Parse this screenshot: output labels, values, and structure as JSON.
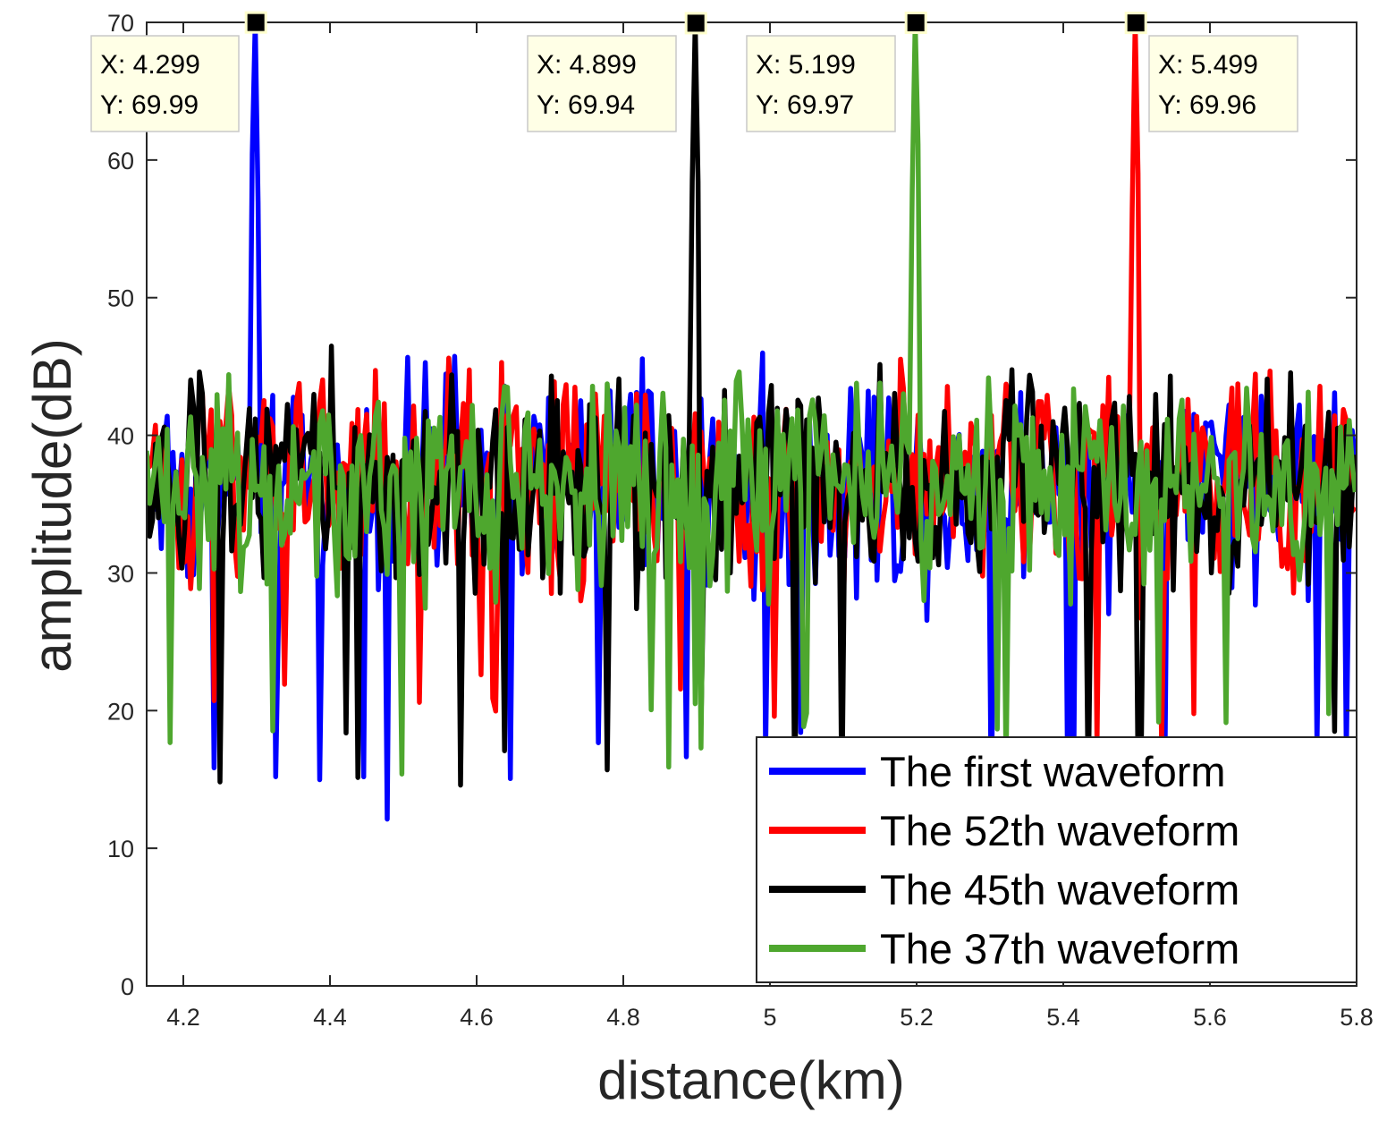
{
  "chart_data": {
    "type": "line",
    "title": "",
    "xlabel": "distance(km)",
    "ylabel": "amplitude(dB)",
    "xlim": [
      4.15,
      5.8
    ],
    "ylim": [
      0,
      70
    ],
    "x_ticks": [
      4.2,
      4.4,
      4.6,
      4.8,
      5,
      5.2,
      5.4,
      5.6,
      5.8
    ],
    "x_tick_labels": [
      "4.2",
      "4.4",
      "4.6",
      "4.8",
      "5",
      "5.2",
      "5.4",
      "5.6",
      "5.8"
    ],
    "y_ticks": [
      0,
      10,
      20,
      30,
      40,
      50,
      60,
      70
    ],
    "y_tick_labels": [
      "0",
      "10",
      "20",
      "30",
      "40",
      "50",
      "60",
      "70"
    ],
    "legend_position": "bottom-right",
    "noise": {
      "x_step": 0.004,
      "mean_db": 36.5,
      "spread_db": 7
    },
    "series": [
      {
        "name": "The first waveform",
        "color": "#0000ff",
        "peak_x": 4.299,
        "peak_y": 69.99,
        "min_y": 11.5,
        "max_noise_y": 46.3
      },
      {
        "name": "The 52th waveform",
        "color": "#ff0000",
        "peak_x": 5.499,
        "peak_y": 69.96,
        "min_y": 15.0,
        "max_noise_y": 46.5
      },
      {
        "name": "The 45th waveform",
        "color": "#000000",
        "peak_x": 4.899,
        "peak_y": 69.94,
        "min_y": 11.0,
        "max_noise_y": 47.5
      },
      {
        "name": "The 37th waveform",
        "color": "#4ea72e",
        "peak_x": 5.199,
        "peak_y": 69.97,
        "min_y": 14.0,
        "max_noise_y": 46.8
      }
    ],
    "datatips": [
      {
        "x_label": "X: 4.299",
        "y_label": "Y: 69.99",
        "x": 4.299,
        "y": 69.99,
        "side": "left"
      },
      {
        "x_label": "X: 4.899",
        "y_label": "Y: 69.94",
        "x": 4.899,
        "y": 69.94,
        "side": "left"
      },
      {
        "x_label": "X: 5.199",
        "y_label": "Y: 69.97",
        "x": 5.199,
        "y": 69.97,
        "side": "left"
      },
      {
        "x_label": "X: 5.499",
        "y_label": "Y: 69.96",
        "x": 5.499,
        "y": 69.96,
        "side": "right"
      }
    ]
  }
}
